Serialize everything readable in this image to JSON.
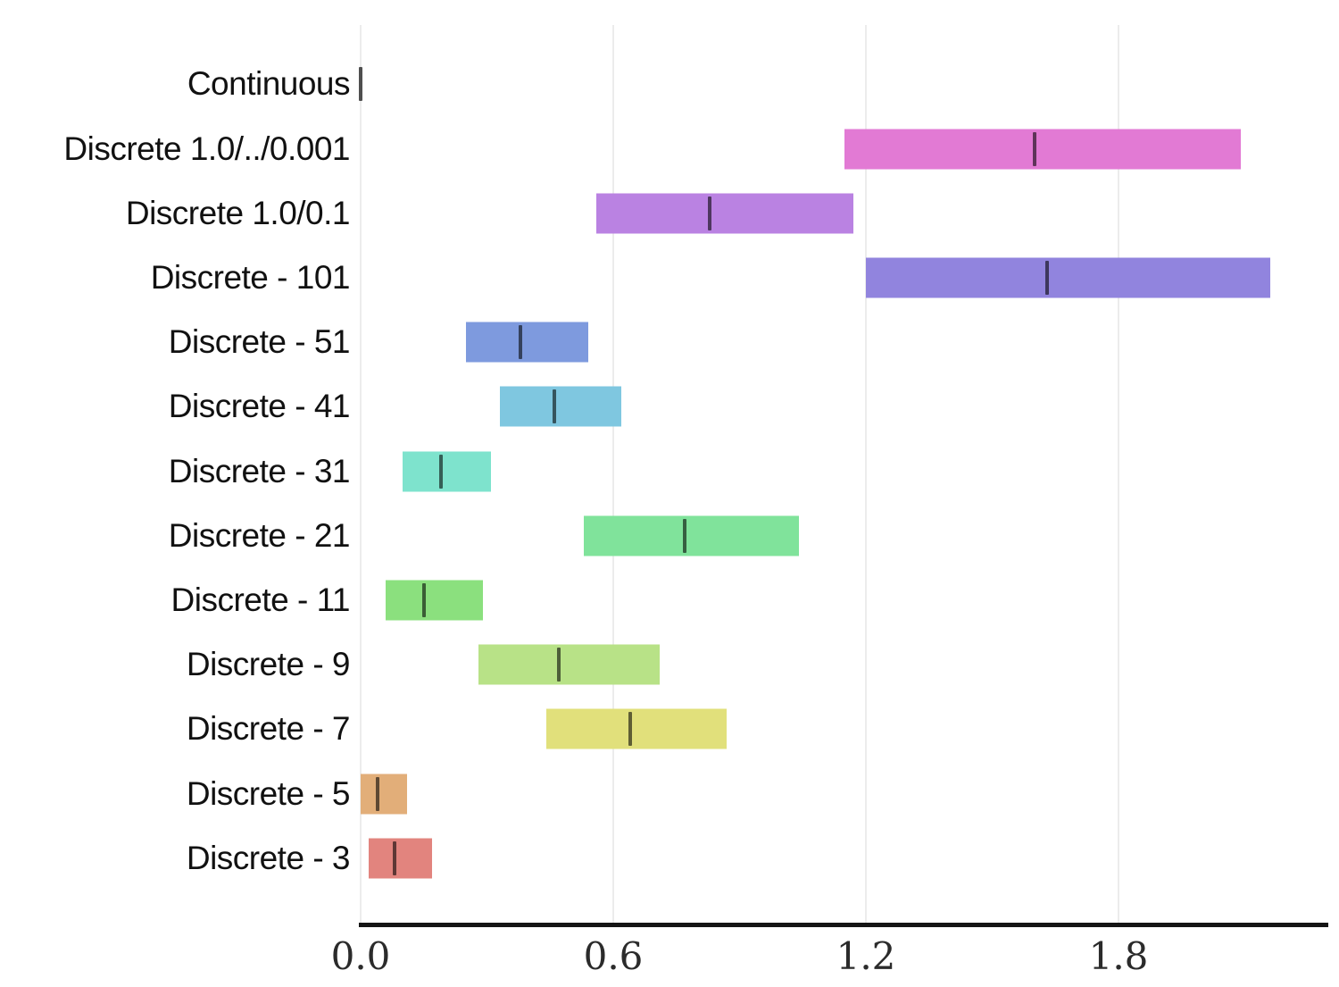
{
  "chart_data": {
    "type": "bar",
    "subtype": "horizontal-range-bars",
    "title": "",
    "xlabel": "",
    "ylabel": "",
    "xlim": [
      0.0,
      2.26
    ],
    "grid": true,
    "x_ticks": [
      {
        "value": 0.0,
        "label": "0.0"
      },
      {
        "value": 0.6,
        "label": "0.6"
      },
      {
        "value": 1.2,
        "label": "1.2"
      },
      {
        "value": 1.8,
        "label": "1.8"
      }
    ],
    "categories": [
      "Continuous",
      "Discrete 1.0/../0.001",
      "Discrete 1.0/0.1",
      "Discrete - 101",
      "Discrete - 51",
      "Discrete - 41",
      "Discrete - 31",
      "Discrete - 21",
      "Discrete - 11",
      "Discrete - 9",
      "Discrete - 7",
      "Discrete - 5",
      "Discrete - 3"
    ],
    "bars": [
      {
        "label": "Continuous",
        "min": 0.0,
        "max": 0.0,
        "median": 0.0,
        "color": "#bdbdbd"
      },
      {
        "label": "Discrete 1.0/../0.001",
        "min": 1.15,
        "max": 2.09,
        "median": 1.6,
        "color": "#e27ad4"
      },
      {
        "label": "Discrete 1.0/0.1",
        "min": 0.56,
        "max": 1.17,
        "median": 0.83,
        "color": "#ba82e2"
      },
      {
        "label": "Discrete - 101",
        "min": 1.2,
        "max": 2.16,
        "median": 1.63,
        "color": "#9184de"
      },
      {
        "label": "Discrete - 51",
        "min": 0.25,
        "max": 0.54,
        "median": 0.38,
        "color": "#7e9ade"
      },
      {
        "label": "Discrete - 41",
        "min": 0.33,
        "max": 0.62,
        "median": 0.46,
        "color": "#7fc7e0"
      },
      {
        "label": "Discrete - 31",
        "min": 0.1,
        "max": 0.31,
        "median": 0.19,
        "color": "#7ee3cd"
      },
      {
        "label": "Discrete - 21",
        "min": 0.53,
        "max": 1.04,
        "median": 0.77,
        "color": "#80e39b"
      },
      {
        "label": "Discrete - 11",
        "min": 0.06,
        "max": 0.29,
        "median": 0.15,
        "color": "#8be07e"
      },
      {
        "label": "Discrete - 9",
        "min": 0.28,
        "max": 0.71,
        "median": 0.47,
        "color": "#b8e287"
      },
      {
        "label": "Discrete - 7",
        "min": 0.44,
        "max": 0.87,
        "median": 0.64,
        "color": "#e1e07b"
      },
      {
        "label": "Discrete - 5",
        "min": 0.0,
        "max": 0.11,
        "median": 0.04,
        "color": "#e2ae79"
      },
      {
        "label": "Discrete - 3",
        "min": 0.02,
        "max": 0.17,
        "median": 0.08,
        "color": "#e2847e"
      }
    ],
    "colors": {
      "background": "#ffffff",
      "gridline": "#ececec",
      "axis_line": "#151515",
      "tick_label_text": "#2b2b2b",
      "category_label_text": "#111111"
    }
  }
}
